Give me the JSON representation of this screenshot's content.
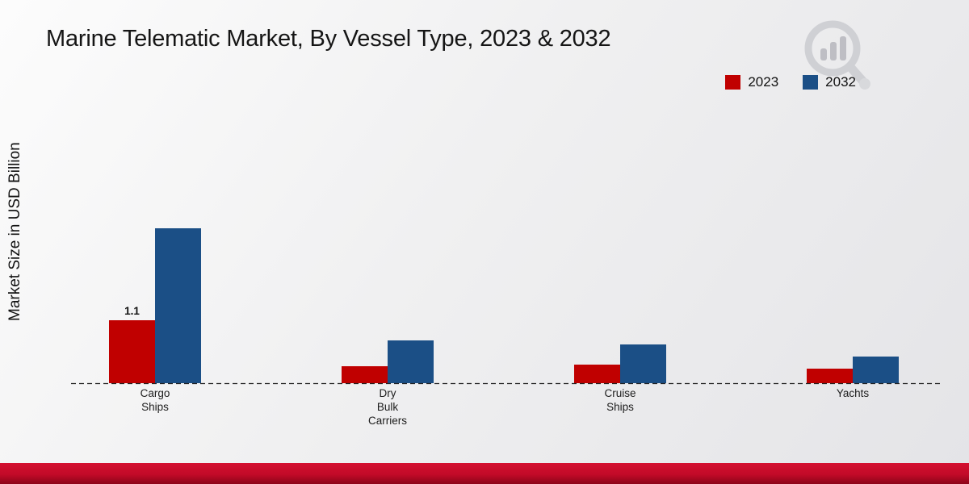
{
  "title": "Marine Telematic Market, By Vessel Type, 2023 & 2032",
  "y_axis_label": "Market Size in USD Billion",
  "chart_data": {
    "type": "bar",
    "title": "Marine Telematic Market, By Vessel Type, 2023 & 2032",
    "ylabel": "Market Size in USD Billion",
    "xlabel": "",
    "categories": [
      "Cargo Ships",
      "Dry Bulk Carriers",
      "Cruise Ships",
      "Yachts"
    ],
    "category_label_lines": [
      [
        "Cargo",
        "Ships"
      ],
      [
        "Dry",
        "Bulk",
        "Carriers"
      ],
      [
        "Cruise",
        "Ships"
      ],
      [
        "Yachts"
      ]
    ],
    "series": [
      {
        "name": "2023",
        "color": "#c00000",
        "values": [
          1.1,
          0.3,
          0.33,
          0.25
        ]
      },
      {
        "name": "2032",
        "color": "#1b4f86",
        "values": [
          2.7,
          0.75,
          0.68,
          0.47
        ]
      }
    ],
    "annotations": [
      {
        "series": "2023",
        "category": "Cargo Ships",
        "text": "1.1"
      }
    ],
    "ylim": [
      0,
      3
    ],
    "grid": false,
    "legend_position": "top-right",
    "baseline_style": "dashed"
  },
  "colors": {
    "series_2023": "#c00000",
    "series_2032": "#1b4f86",
    "footer_red": "#c20a28",
    "background_start": "#fcfcfc",
    "background_end": "#e4e4e7",
    "baseline": "#222222"
  }
}
